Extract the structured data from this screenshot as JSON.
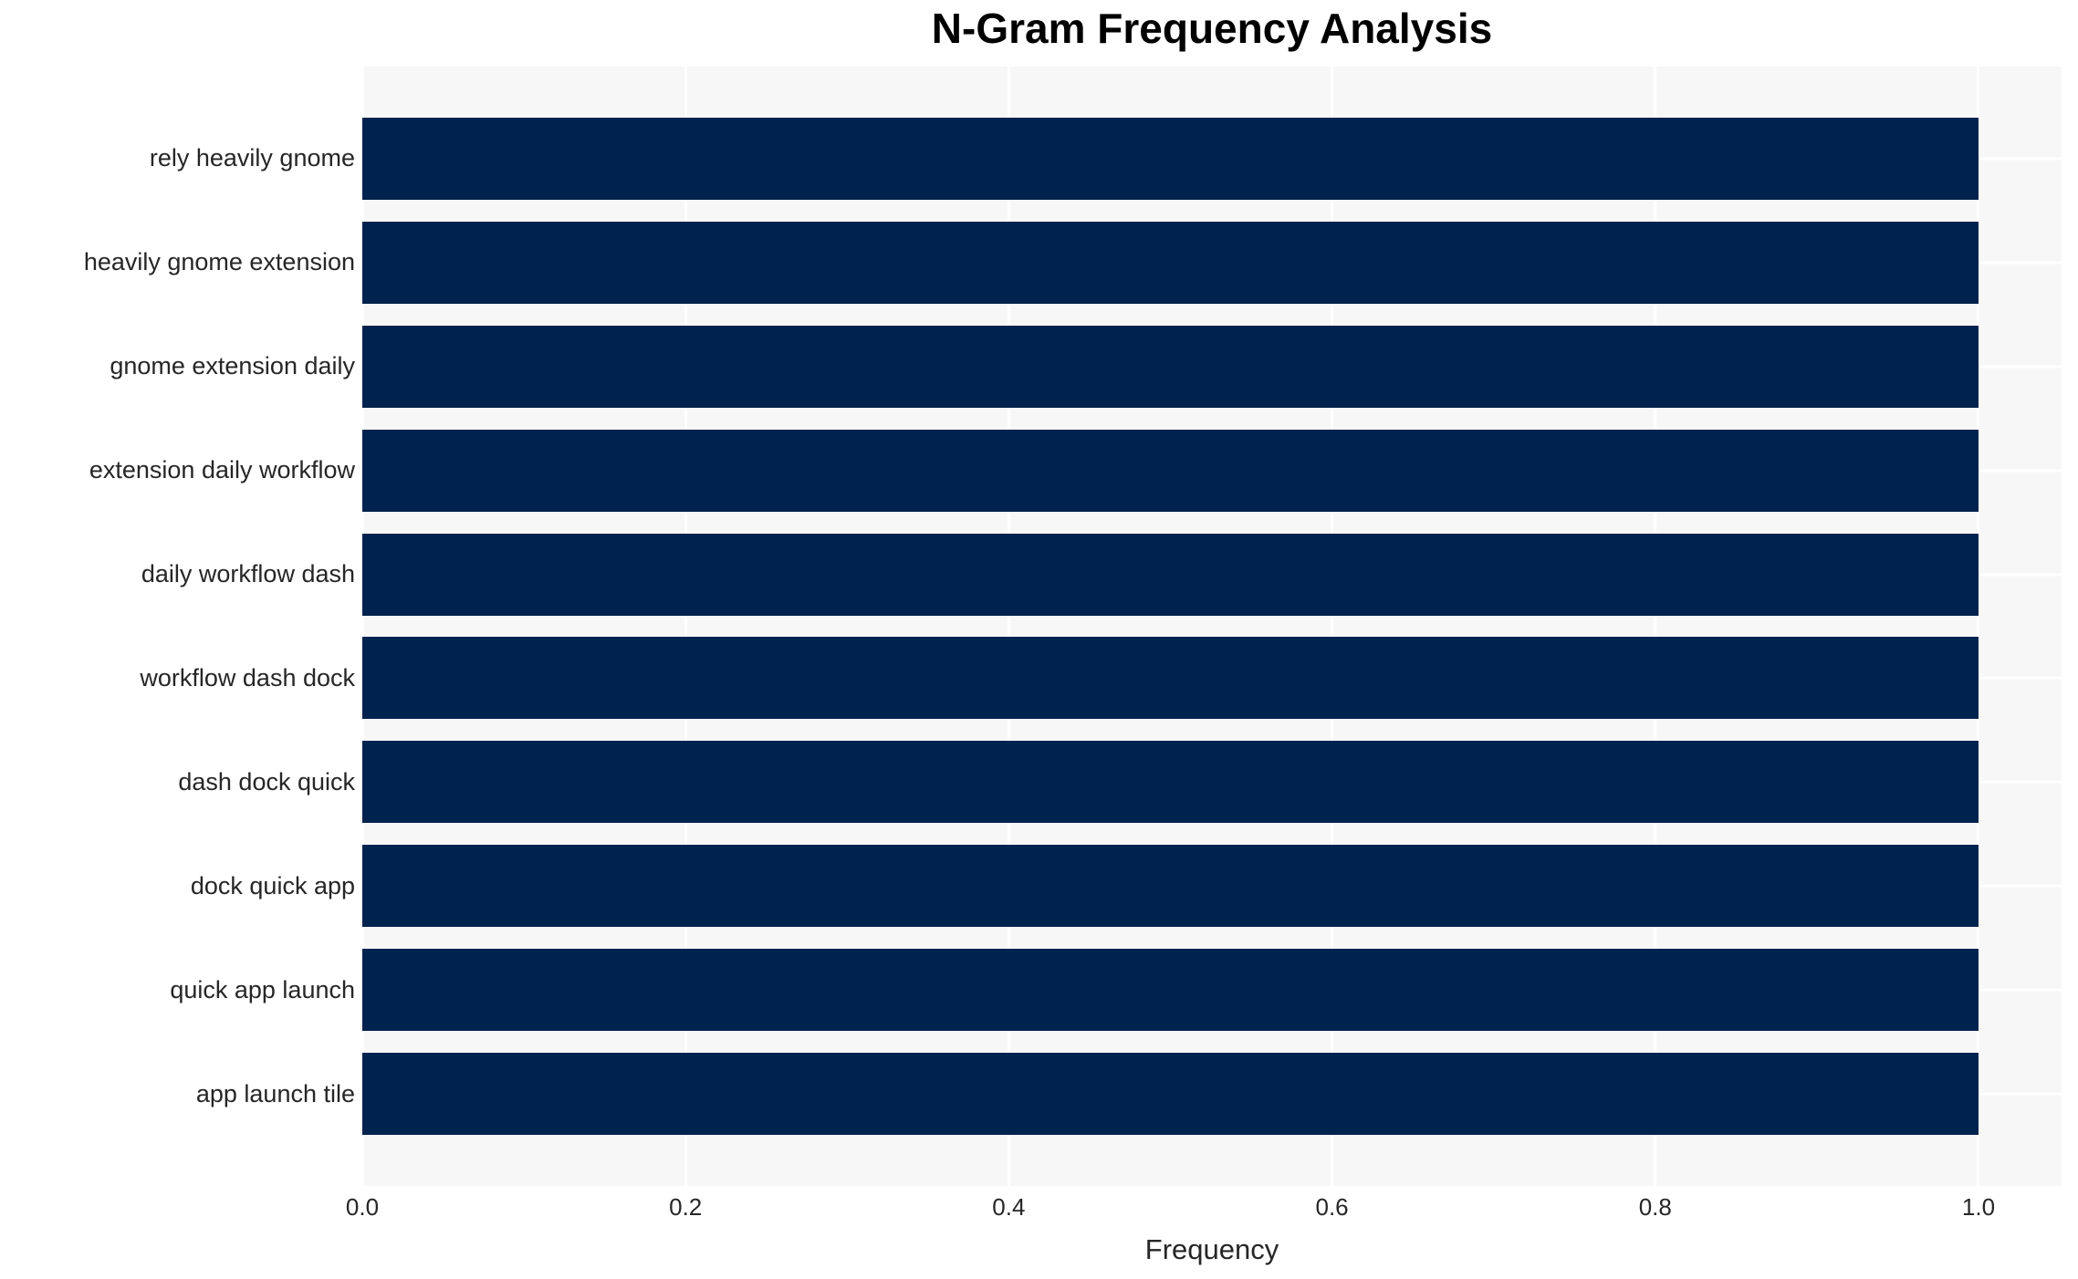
{
  "chart_data": {
    "type": "bar",
    "orientation": "horizontal",
    "title": "N-Gram Frequency Analysis",
    "xlabel": "Frequency",
    "ylabel": "",
    "categories": [
      "rely heavily gnome",
      "heavily gnome extension",
      "gnome extension daily",
      "extension daily workflow",
      "daily workflow dash",
      "workflow dash dock",
      "dash dock quick",
      "dock quick app",
      "quick app launch",
      "app launch tile"
    ],
    "values": [
      1.0,
      1.0,
      1.0,
      1.0,
      1.0,
      1.0,
      1.0,
      1.0,
      1.0,
      1.0
    ],
    "x_ticks": [
      0.0,
      0.2,
      0.4,
      0.6,
      0.8,
      1.0
    ],
    "x_tick_labels": [
      "0.0",
      "0.2",
      "0.4",
      "0.6",
      "0.8",
      "1.0"
    ],
    "xlim": [
      0,
      1.0514
    ],
    "grid": true,
    "legend": false,
    "bar_height_fraction": 0.8,
    "colors": {
      "bar": "#00224e",
      "plot_bg": "#f7f7f7",
      "grid_line": "#ffffff",
      "tick_text": "#262626",
      "title_text": "#000000",
      "page_bg": "#ffffff"
    }
  }
}
